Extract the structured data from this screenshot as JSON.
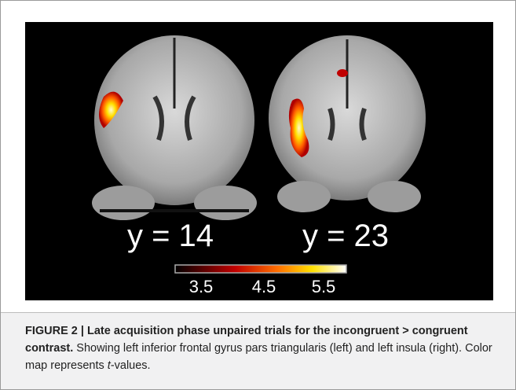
{
  "figure": {
    "slices": [
      "y = 14",
      "y = 23"
    ],
    "colorbar_ticks": [
      "3.5",
      "4.5",
      "5.5"
    ]
  },
  "caption": {
    "label": "FIGURE 2 | Late acquisition phase unpaired trials for the incongruent > congruent contrast.",
    "text_before": "Showing left inferior frontal gyrus pars triangularis (left) and left insula (right). Color map represents",
    "italic": "t",
    "text_after": "-values."
  }
}
